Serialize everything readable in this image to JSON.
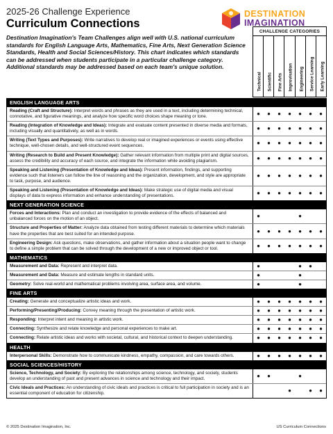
{
  "header": {
    "year_line": "2025-26 Challenge Experience",
    "title": "Curriculum Connections",
    "logo_line1": "DESTINATION",
    "logo_line2": "IMAGINATION"
  },
  "intro": "Destination Imagination's Team Challenges align well with U.S. national curriculum standards for English Language Arts, Mathematics, Fine Arts, Next Generation Science Standards, Health and Social Sciences/History. This chart indicates which standards can be addressed when students participate in a particular challenge category. Additional standards may be addressed based on each team's unique solution.",
  "categories_header": "CHALLENGE CATEGORIES",
  "categories": [
    "Technical",
    "Scientific",
    "Fine Arts",
    "Improvisation",
    "Engineering",
    "Service Learning",
    "Early Learning"
  ],
  "sections": [
    {
      "title": "ENGLISH LANGUAGE ARTS",
      "rows": [
        {
          "label": "Reading (Craft and Structure):",
          "text": " Interpret words and phrases as they are used in a text, including determining technical, connotative, and figurative meanings, and analyze how specific word choices shape meaning or tone.",
          "marks": [
            "●",
            "●",
            "●",
            "●",
            "●",
            "●",
            "●"
          ]
        },
        {
          "label": "Reading (Integration of Knowledge and Ideas):",
          "text": " Integrate and evaluate content presented in diverse media and formats, including visually and quantitatively, as well as in words.",
          "marks": [
            "●",
            "●",
            "●",
            "●",
            "●",
            "●",
            "●"
          ]
        },
        {
          "label": "Writing (Text Types and Purposes):",
          "text": " Write narratives to develop real or imagined experiences or events using effective technique, well-chosen details, and well-structured event sequences.",
          "marks": [
            "●",
            "●",
            "●",
            "●",
            "●",
            "●",
            "●"
          ]
        },
        {
          "label": "Writing (Research to Build and Present Knowledge):",
          "text": " Gather relevant information from multiple print and digital sources, assess the credibility and accuracy of each source, and integrate the information while avoiding plagiarism.",
          "marks": [
            "●",
            "●",
            "●",
            "●",
            "●",
            "●",
            "●"
          ]
        },
        {
          "label": "Speaking and Listening (Presentation of Knowledge and Ideas):",
          "text": " Present information, findings, and supporting evidence such that listeners can follow the line of reasoning and the organization, development, and style are appropriate to task, purpose, and audience.",
          "marks": [
            "●",
            "●",
            "●",
            "●",
            "●",
            "●",
            "●"
          ]
        },
        {
          "label": "Speaking and Listening (Presentation of Knowledge and Ideas):",
          "text": " Make strategic use of digital media and visual displays of data to express information and enhance understanding of presentations.",
          "marks": [
            "●",
            "●",
            "●",
            "●",
            "●",
            "●",
            "●"
          ]
        }
      ]
    },
    {
      "title": "NEXT GENERATION SCIENCE",
      "rows": [
        {
          "label": "Forces and Interactions:",
          "text": " Plan and conduct an investigation to provide evidence of the effects of balanced and unbalanced forces on the motion of an object.",
          "marks": [
            "●",
            "",
            "",
            "",
            "●",
            "",
            ""
          ]
        },
        {
          "label": "Structure and Properties of Matter:",
          "text": " Analyze data obtained from testing different materials to determine which materials have the properties that are best suited for an intended purpose.",
          "marks": [
            "●",
            "●",
            "●",
            "●",
            "●",
            "●",
            "●"
          ]
        },
        {
          "label": "Engineering Design:",
          "text": " Ask questions, make observations, and gather information about a situation people want to change to define a simple problem that can be solved through the development of a new or improved object or tool.",
          "marks": [
            "●",
            "●",
            "●",
            "●",
            "●",
            "●",
            "●"
          ]
        }
      ]
    },
    {
      "title": "MATHEMATICS",
      "rows": [
        {
          "label": "Measurement and Data:",
          "text": " Represent and interpret data.",
          "marks": [
            "●",
            "",
            "",
            "",
            "●",
            "●",
            ""
          ]
        },
        {
          "label": "Measurement and Data:",
          "text": " Measure and estimate lengths in standard units.",
          "marks": [
            "●",
            "",
            "",
            "",
            "●",
            "",
            ""
          ]
        },
        {
          "label": "Geometry:",
          "text": " Solve real-world and mathematical problems involving area, surface area, and volume.",
          "marks": [
            "●",
            "",
            "",
            "",
            "●",
            "",
            ""
          ]
        }
      ]
    },
    {
      "title": "FINE ARTS",
      "rows": [
        {
          "label": "Creating:",
          "text": " Generate and conceptualize artistic ideas and work.",
          "marks": [
            "●",
            "●",
            "●",
            "●",
            "●",
            "●",
            "●"
          ]
        },
        {
          "label": "Performing/Presenting/Producing:",
          "text": " Convey meaning through the presentation of artistic work.",
          "marks": [
            "●",
            "●",
            "●",
            "●",
            "●",
            "●",
            "●"
          ]
        },
        {
          "label": "Responding:",
          "text": " Interpret intent and meaning in artistic work.",
          "marks": [
            "●",
            "●",
            "●",
            "●",
            "●",
            "●",
            "●"
          ]
        },
        {
          "label": "Connecting:",
          "text": " Synthesize and relate knowledge and personal experiences to make art.",
          "marks": [
            "●",
            "●",
            "●",
            "●",
            "●",
            "●",
            "●"
          ]
        },
        {
          "label": "Connecting:",
          "text": " Relate artistic ideas and works with societal, cultural, and historical context to deepen understanding.",
          "marks": [
            "●",
            "●",
            "●",
            "●",
            "●",
            "●",
            "●"
          ]
        }
      ]
    },
    {
      "title": "HEALTH",
      "rows": [
        {
          "label": "Interpersonal Skills:",
          "text": " Demonstrate how to communicate kindness, empathy, compassion, and care towards others.",
          "marks": [
            "●",
            "●",
            "●",
            "●",
            "●",
            "●",
            "●"
          ]
        }
      ]
    },
    {
      "title": "SOCIAL SCIENCES/HISTORY",
      "rows": [
        {
          "label": "Science, Technology, and Society:",
          "text": " By exploring the relationships among science, technology, and society, students develop an understanding of past and present advances in science and technology and their impact.",
          "marks": [
            "●",
            "●",
            "",
            "",
            "●",
            "",
            ""
          ]
        },
        {
          "label": "Civic Ideals and Practices:",
          "text": " An understanding of civic ideals and practices is critical to full participation in society and is an essential component of education for citizenship.",
          "marks": [
            "",
            "",
            "",
            "●",
            "",
            "●",
            "●"
          ]
        }
      ]
    }
  ],
  "footer": {
    "copyright": "© 2025 Destination Imagination, Inc.",
    "doc_name": "US Curriculum Connections"
  },
  "colors": {
    "logo_orange": "#f7a51b",
    "logo_purple": "#6a2f8e",
    "logo_red": "#e8412c",
    "section_bg": "#000000"
  }
}
